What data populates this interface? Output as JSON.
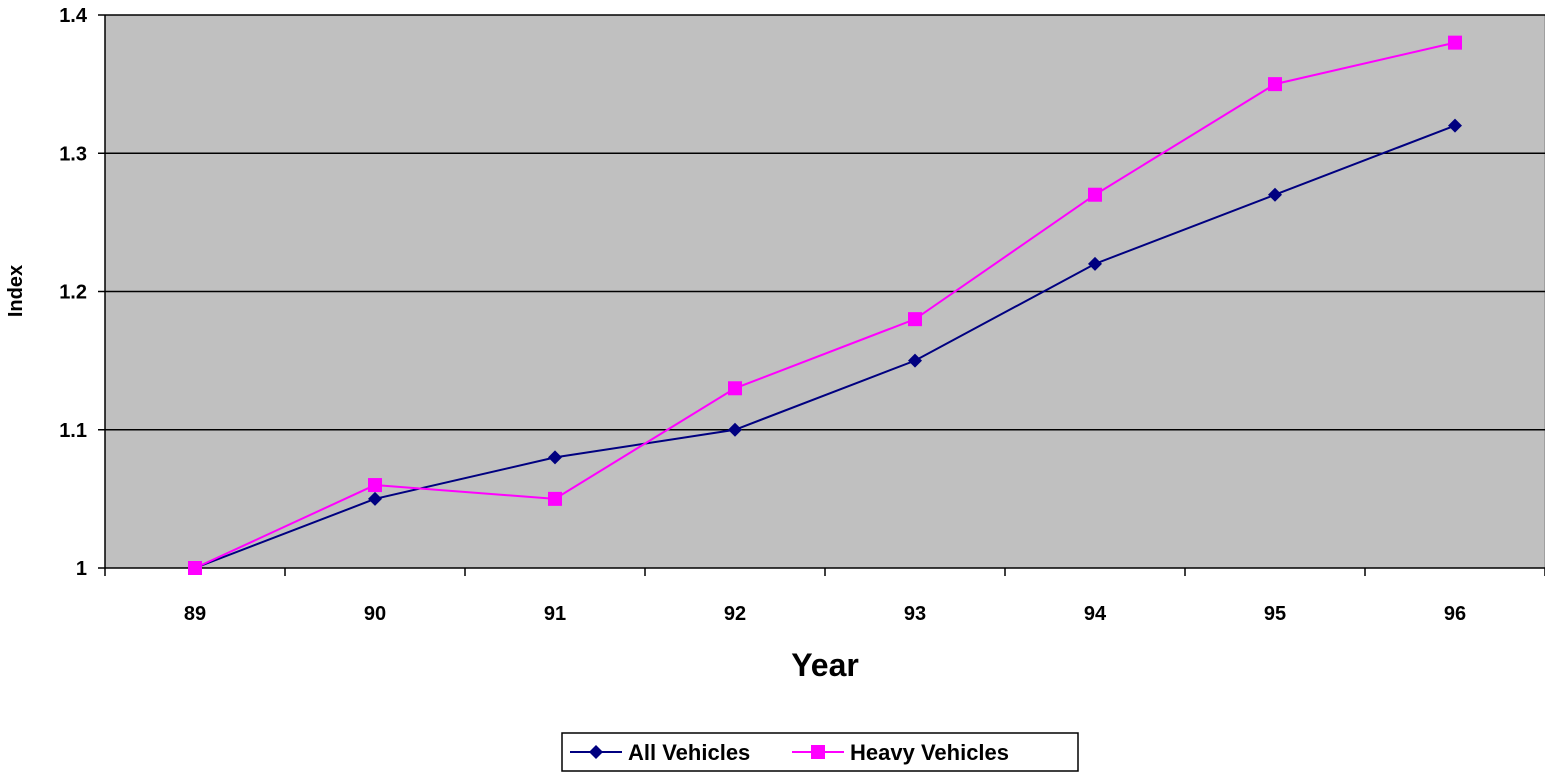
{
  "chart_data": {
    "type": "line",
    "title": "",
    "xlabel": "Year",
    "ylabel": "Index",
    "categories": [
      "89",
      "90",
      "91",
      "92",
      "93",
      "94",
      "95",
      "96"
    ],
    "ylim": [
      1,
      1.4
    ],
    "yticks": [
      "1",
      "1.1",
      "1.2",
      "1.3",
      "1.4"
    ],
    "grid": "horizontal major gridlines",
    "plot_background": "#c0c0c0",
    "legend_position": "bottom",
    "series": [
      {
        "name": "All Vehicles",
        "marker": "diamond",
        "color": "#000080",
        "values": [
          1.0,
          1.05,
          1.08,
          1.1,
          1.15,
          1.22,
          1.27,
          1.32
        ]
      },
      {
        "name": "Heavy Vehicles",
        "marker": "square",
        "color": "#ff00ff",
        "values": [
          1.0,
          1.06,
          1.05,
          1.13,
          1.18,
          1.27,
          1.35,
          1.38
        ]
      }
    ]
  }
}
